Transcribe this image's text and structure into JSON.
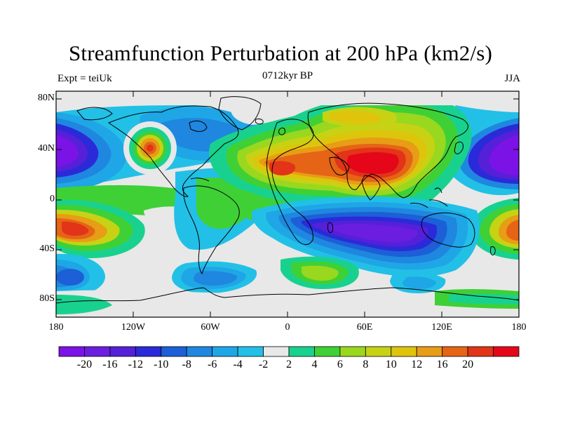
{
  "title": "Streamfunction Perturbation at 200 hPa (km2/s)",
  "left_label": "Expt = teiUk",
  "center_label": "0712kyr BP",
  "right_label": "JJA",
  "map": {
    "type": "filled_contour_map",
    "projection": "cylindrical-equidistant",
    "lon_range": [
      -180,
      180
    ],
    "lat_range": [
      -90,
      90
    ],
    "y_ticks": [
      {
        "label": "80N",
        "lat": 80
      },
      {
        "label": "40N",
        "lat": 40
      },
      {
        "label": "0",
        "lat": 0
      },
      {
        "label": "40S",
        "lat": -40
      },
      {
        "label": "80S",
        "lat": -80
      }
    ],
    "x_ticks": [
      {
        "label": "180",
        "lon": -180
      },
      {
        "label": "120W",
        "lon": -120
      },
      {
        "label": "60W",
        "lon": -60
      },
      {
        "label": "0",
        "lon": 0
      },
      {
        "label": "60E",
        "lon": 60
      },
      {
        "label": "120E",
        "lon": 120
      },
      {
        "label": "180",
        "lon": 180
      }
    ]
  },
  "colorbar": {
    "colors": [
      "#7b12e6",
      "#6b1ee0",
      "#5520d8",
      "#2b2ad9",
      "#1c5fd6",
      "#1f87df",
      "#1fa6e6",
      "#22c0e6",
      "#e8e8e8",
      "#19d18f",
      "#3fd036",
      "#99d81e",
      "#c7d214",
      "#dfc40c",
      "#e79d15",
      "#e56416",
      "#e23419",
      "#e5061a"
    ],
    "labels": [
      "-20",
      "-16",
      "-12",
      "-10",
      "-8",
      "-6",
      "-4",
      "-2",
      "2",
      "4",
      "6",
      "8",
      "10",
      "12",
      "16",
      "20"
    ],
    "units": "km2/s"
  }
}
